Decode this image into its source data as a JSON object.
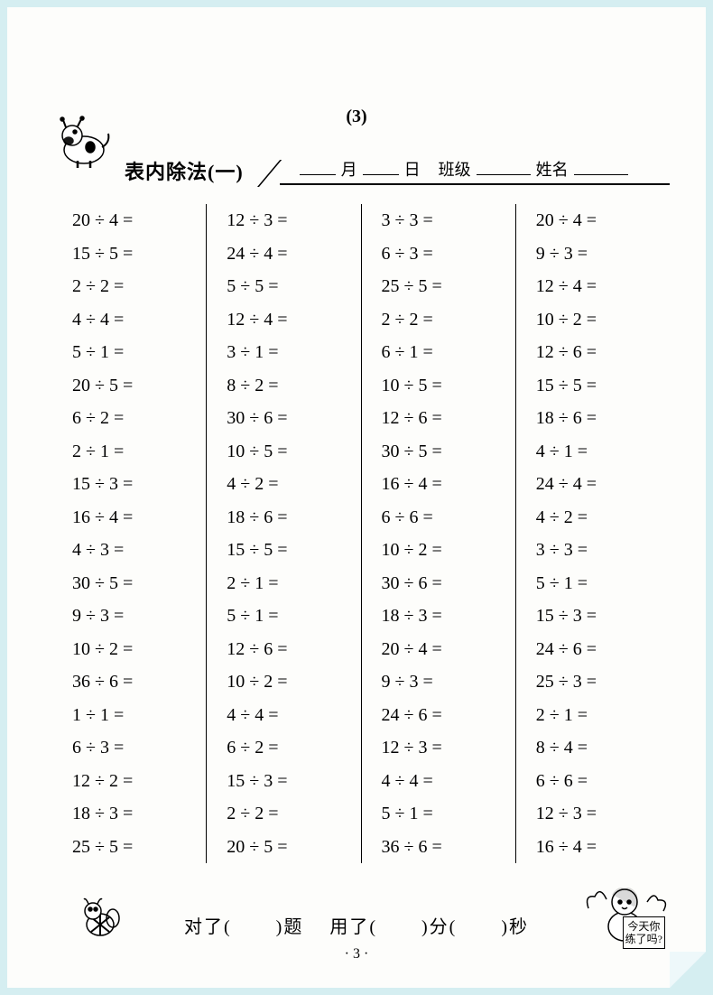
{
  "page_number_top": "(3)",
  "title": "表内除法(一)",
  "header": {
    "month": "月",
    "day": "日",
    "class": "班级",
    "name": "姓名"
  },
  "columns": [
    [
      "20 ÷ 4 =",
      "15 ÷ 5 =",
      "2 ÷ 2 =",
      "4 ÷ 4 =",
      "5 ÷ 1 =",
      "20 ÷ 5 =",
      "6 ÷ 2 =",
      "2 ÷ 1 =",
      "15 ÷ 3 =",
      "16 ÷ 4 =",
      "4 ÷ 3 =",
      "30 ÷ 5 =",
      "9 ÷ 3 =",
      "10 ÷ 2 =",
      "36 ÷ 6 =",
      "1 ÷ 1 =",
      "6 ÷ 3 =",
      "12 ÷ 2 =",
      "18 ÷ 3 =",
      "25 ÷ 5 ="
    ],
    [
      "12 ÷ 3 =",
      "24 ÷ 4 =",
      "5 ÷ 5 =",
      "12 ÷ 4 =",
      "3 ÷ 1 =",
      "8 ÷ 2 =",
      "30 ÷ 6 =",
      "10 ÷ 5 =",
      "4 ÷ 2 =",
      "18 ÷ 6 =",
      "15 ÷ 5 =",
      "2 ÷ 1 =",
      "5 ÷ 1 =",
      "12 ÷ 6 =",
      "10 ÷ 2 =",
      "4 ÷ 4 =",
      "6 ÷ 2 =",
      "15 ÷ 3 =",
      "2 ÷ 2 =",
      "20 ÷ 5 ="
    ],
    [
      "3 ÷ 3 =",
      "6 ÷ 3 =",
      "25 ÷ 5 =",
      "2 ÷ 2 =",
      "6 ÷ 1 =",
      "10 ÷ 5 =",
      "12 ÷ 6 =",
      "30 ÷ 5 =",
      "16 ÷ 4 =",
      "6 ÷ 6 =",
      "10 ÷ 2 =",
      "30 ÷ 6 =",
      "18 ÷ 3 =",
      "20 ÷ 4 =",
      "9 ÷ 3 =",
      "24 ÷ 6 =",
      "12 ÷ 3 =",
      "4 ÷ 4 =",
      "5 ÷ 1 =",
      "36 ÷ 6 ="
    ],
    [
      "20 ÷ 4 =",
      "9 ÷ 3 =",
      "12 ÷ 4 =",
      "10 ÷ 2 =",
      "12 ÷ 6 =",
      "15 ÷ 5 =",
      "18 ÷ 6 =",
      "4 ÷ 1 =",
      "24 ÷ 4 =",
      "4 ÷ 2 =",
      "3 ÷ 3 =",
      "5 ÷ 1 =",
      "15 ÷ 3 =",
      "24 ÷ 6 =",
      "25 ÷ 3 =",
      "2 ÷ 1 =",
      "8 ÷ 4 =",
      "6 ÷ 6 =",
      "12 ÷ 3 =",
      "16 ÷ 4 ="
    ]
  ],
  "footer": {
    "correct_label": "对了(",
    "correct_suffix": ")题",
    "time_label": "用了(",
    "min_suffix": ")分(",
    "sec_suffix": ")秒"
  },
  "angel_box": {
    "line1": "今天你",
    "line2": "练了吗?"
  },
  "page_bottom": "· 3 ·",
  "colors": {
    "page_bg": "#fdfdfb",
    "outer_bg": "#d5eef1",
    "text": "#000000"
  }
}
